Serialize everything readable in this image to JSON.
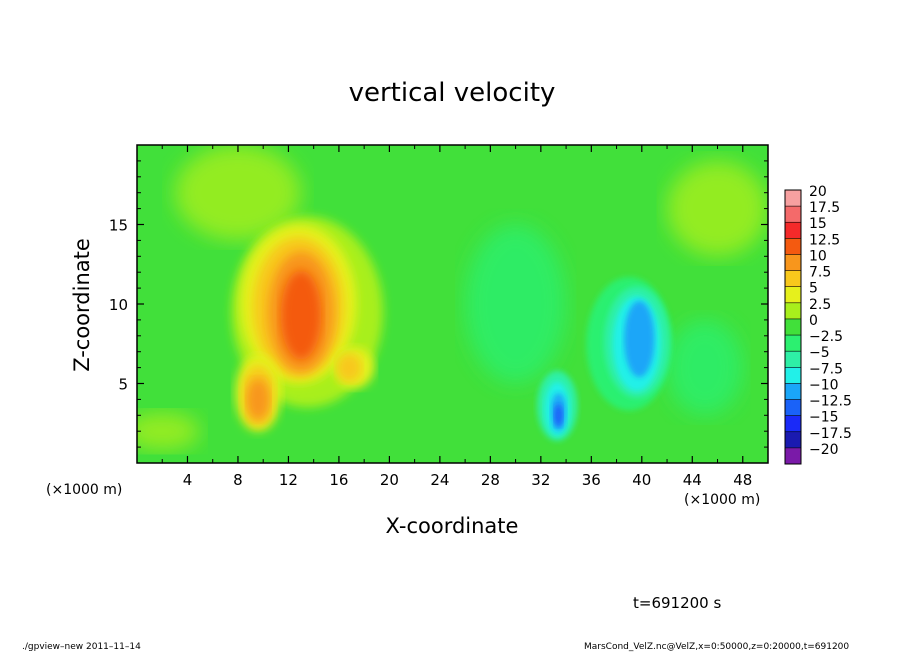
{
  "chart_data": {
    "type": "heatmap",
    "title": "vertical velocity",
    "xlabel": "X-coordinate",
    "ylabel": "Z-coordinate",
    "x_unit": "(×1000 m)",
    "xlim": [
      0,
      50
    ],
    "ylim": [
      0,
      20
    ],
    "x_ticks": [
      4,
      8,
      12,
      16,
      20,
      24,
      28,
      32,
      36,
      40,
      44,
      48
    ],
    "x_tick_labels": [
      "4",
      "8",
      "12",
      "16",
      "20",
      "24",
      "28",
      "32",
      "36",
      "40",
      "44",
      "48"
    ],
    "y_ticks": [
      5,
      10,
      15
    ],
    "y_tick_labels": [
      "5",
      "10",
      "15"
    ],
    "colorbar": {
      "levels": [
        20,
        17.5,
        15,
        12.5,
        10,
        7.5,
        5,
        2.5,
        0,
        -2.5,
        -5,
        -7.5,
        -10,
        -12.5,
        -15,
        -17.5,
        -20
      ],
      "labels": [
        "20",
        "17.5",
        "15",
        "12.5",
        "10",
        "7.5",
        "5",
        "2.5",
        "0",
        "−2.5",
        "−5",
        "−7.5",
        "−10",
        "−12.5",
        "−15",
        "−17.5",
        "−20"
      ],
      "colors": [
        "#f7a0a0",
        "#f46a6a",
        "#f42a2a",
        "#f45a10",
        "#f8961c",
        "#f8c81c",
        "#e6f01c",
        "#a8ef1c",
        "#41e03a",
        "#2cf070",
        "#2ef0a6",
        "#22f0e8",
        "#1aa6f8",
        "#1a62f8",
        "#1a2af8",
        "#1a1ab0",
        "#7a1aa8"
      ]
    },
    "field_features": [
      {
        "kind": "updraft",
        "x_center": 13,
        "z_center": 9.5,
        "peak_w": 12.5
      },
      {
        "kind": "updraft",
        "x_center": 9.5,
        "z_center": 4.2,
        "peak_w": 10
      },
      {
        "kind": "downdraft",
        "x_center": 39.5,
        "z_center": 7.5,
        "peak_w": -10
      },
      {
        "kind": "downdraft",
        "x_center": 33.5,
        "z_center": 3.5,
        "peak_w": -12.5
      }
    ]
  },
  "annotations": {
    "time": "t=691200 s",
    "footer_left": "./gpview–new  2011–11–14",
    "footer_right": "MarsCond_VelZ.nc@VelZ,x=0:50000,z=0:20000,t=691200"
  }
}
